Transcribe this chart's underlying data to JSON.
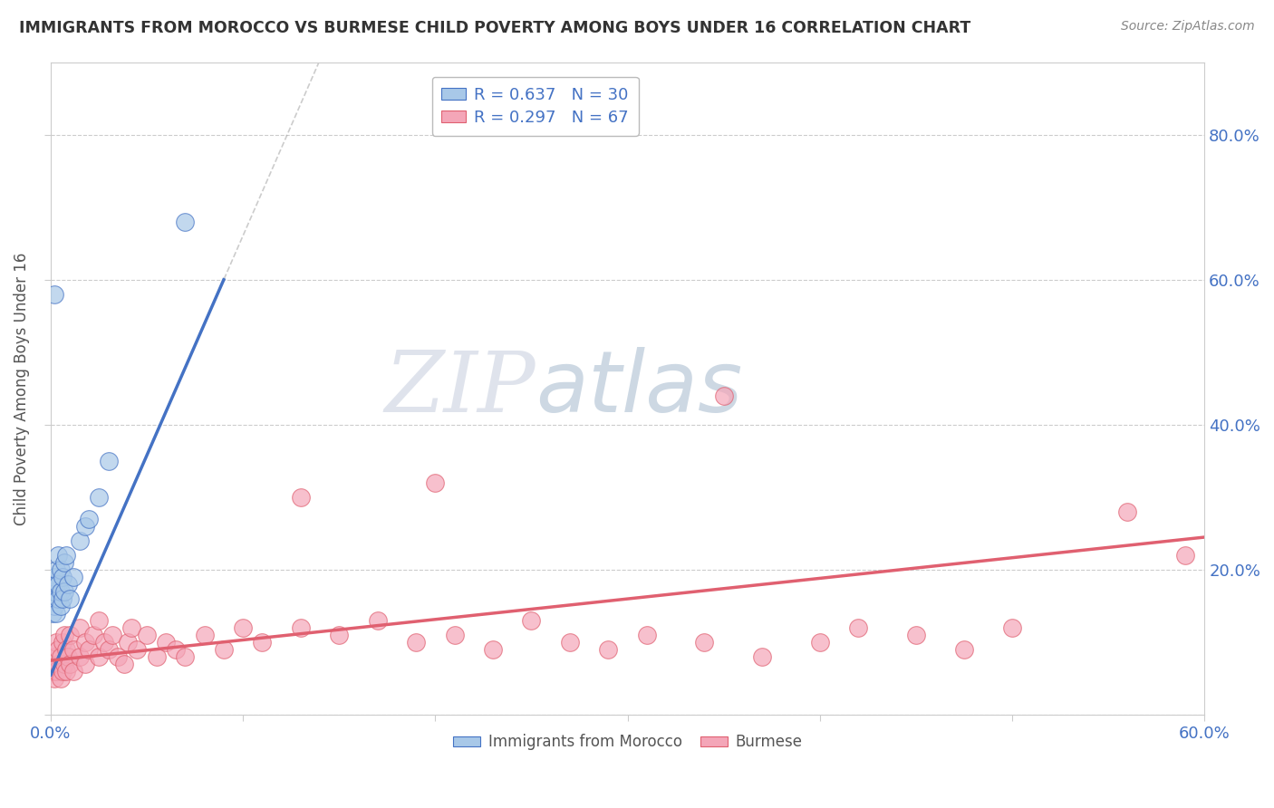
{
  "title": "IMMIGRANTS FROM MOROCCO VS BURMESE CHILD POVERTY AMONG BOYS UNDER 16 CORRELATION CHART",
  "source": "Source: ZipAtlas.com",
  "ylabel": "Child Poverty Among Boys Under 16",
  "xlim": [
    0.0,
    0.6
  ],
  "ylim": [
    0.0,
    0.9
  ],
  "color_morocco": "#A8C8E8",
  "color_burmese": "#F4A6B8",
  "line_color_morocco": "#4472C4",
  "line_color_burmese": "#E06070",
  "watermark_zip": "ZIP",
  "watermark_atlas": "atlas",
  "background_color": "#FFFFFF",
  "morocco_x": [
    0.001,
    0.001,
    0.001,
    0.002,
    0.002,
    0.002,
    0.003,
    0.003,
    0.003,
    0.004,
    0.004,
    0.004,
    0.005,
    0.005,
    0.005,
    0.006,
    0.006,
    0.007,
    0.007,
    0.008,
    0.009,
    0.01,
    0.012,
    0.015,
    0.018,
    0.02,
    0.025,
    0.002,
    0.07,
    0.03
  ],
  "morocco_y": [
    0.14,
    0.16,
    0.18,
    0.15,
    0.17,
    0.19,
    0.14,
    0.18,
    0.2,
    0.16,
    0.18,
    0.22,
    0.15,
    0.17,
    0.2,
    0.16,
    0.19,
    0.17,
    0.21,
    0.22,
    0.18,
    0.16,
    0.19,
    0.24,
    0.26,
    0.27,
    0.3,
    0.58,
    0.68,
    0.35
  ],
  "burmese_x": [
    0.001,
    0.002,
    0.002,
    0.003,
    0.003,
    0.004,
    0.004,
    0.005,
    0.005,
    0.006,
    0.006,
    0.007,
    0.007,
    0.008,
    0.008,
    0.009,
    0.01,
    0.01,
    0.012,
    0.012,
    0.015,
    0.015,
    0.018,
    0.018,
    0.02,
    0.022,
    0.025,
    0.025,
    0.028,
    0.03,
    0.032,
    0.035,
    0.038,
    0.04,
    0.042,
    0.045,
    0.05,
    0.055,
    0.06,
    0.065,
    0.07,
    0.08,
    0.09,
    0.1,
    0.11,
    0.13,
    0.15,
    0.17,
    0.19,
    0.21,
    0.23,
    0.25,
    0.27,
    0.29,
    0.31,
    0.34,
    0.37,
    0.4,
    0.42,
    0.45,
    0.475,
    0.5,
    0.13,
    0.2,
    0.35,
    0.56,
    0.59
  ],
  "burmese_y": [
    0.06,
    0.05,
    0.08,
    0.06,
    0.1,
    0.07,
    0.09,
    0.05,
    0.08,
    0.06,
    0.1,
    0.07,
    0.11,
    0.06,
    0.09,
    0.08,
    0.07,
    0.11,
    0.06,
    0.09,
    0.08,
    0.12,
    0.07,
    0.1,
    0.09,
    0.11,
    0.08,
    0.13,
    0.1,
    0.09,
    0.11,
    0.08,
    0.07,
    0.1,
    0.12,
    0.09,
    0.11,
    0.08,
    0.1,
    0.09,
    0.08,
    0.11,
    0.09,
    0.12,
    0.1,
    0.12,
    0.11,
    0.13,
    0.1,
    0.11,
    0.09,
    0.13,
    0.1,
    0.09,
    0.11,
    0.1,
    0.08,
    0.1,
    0.12,
    0.11,
    0.09,
    0.12,
    0.3,
    0.32,
    0.44,
    0.28,
    0.22
  ],
  "morocco_line_x0": 0.0,
  "morocco_line_y0": 0.055,
  "morocco_line_x1": 0.09,
  "morocco_line_y1": 0.6,
  "burmese_line_x0": 0.0,
  "burmese_line_y0": 0.075,
  "burmese_line_x1": 0.6,
  "burmese_line_y1": 0.245
}
